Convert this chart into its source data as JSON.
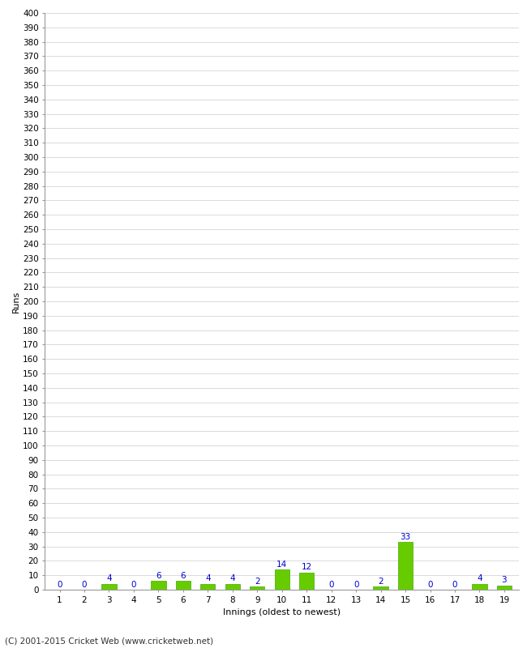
{
  "title": "",
  "xlabel": "Innings (oldest to newest)",
  "ylabel": "Runs",
  "categories": [
    1,
    2,
    3,
    4,
    5,
    6,
    7,
    8,
    9,
    10,
    11,
    12,
    13,
    14,
    15,
    16,
    17,
    18,
    19
  ],
  "values": [
    0,
    0,
    4,
    0,
    6,
    6,
    4,
    4,
    2,
    14,
    12,
    0,
    0,
    2,
    33,
    0,
    0,
    4,
    3
  ],
  "bar_color": "#66cc00",
  "bar_edge_color": "#44aa00",
  "label_color": "#0000cc",
  "background_color": "#ffffff",
  "grid_color": "#cccccc",
  "ylim": [
    0,
    400
  ],
  "ytick_step": 10,
  "footer_text": "(C) 2001-2015 Cricket Web (www.cricketweb.net)",
  "label_fontsize": 7.5,
  "axis_label_fontsize": 8,
  "tick_fontsize": 7.5,
  "footer_fontsize": 7.5
}
